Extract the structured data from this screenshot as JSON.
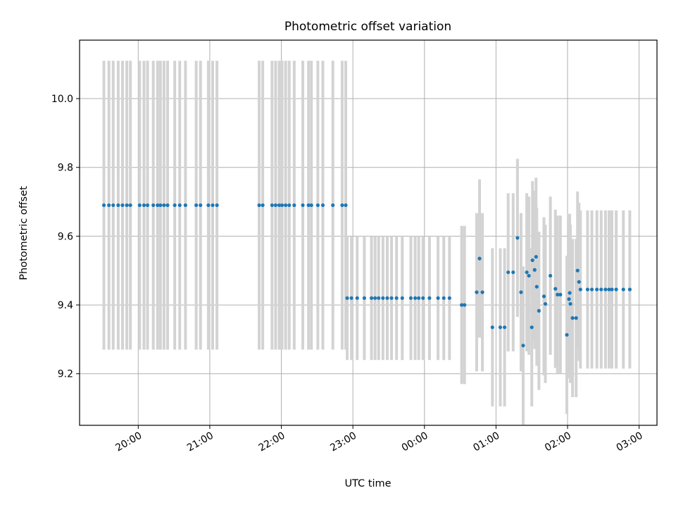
{
  "chart_data": {
    "type": "scatter",
    "title": "Photometric offset variation",
    "xlabel": "UTC time",
    "ylabel": "Photometric offset",
    "x_unit": "hours",
    "x_ticks": [
      {
        "value": 20,
        "label": "20:00"
      },
      {
        "value": 21,
        "label": "21:00"
      },
      {
        "value": 22,
        "label": "22:00"
      },
      {
        "value": 23,
        "label": "23:00"
      },
      {
        "value": 24,
        "label": "00:00"
      },
      {
        "value": 25,
        "label": "01:00"
      },
      {
        "value": 26,
        "label": "02:00"
      },
      {
        "value": 27,
        "label": "03:00"
      }
    ],
    "y_ticks": [
      {
        "value": 9.2,
        "label": "9.2"
      },
      {
        "value": 9.4,
        "label": "9.4"
      },
      {
        "value": 9.6,
        "label": "9.6"
      },
      {
        "value": 9.8,
        "label": "9.8"
      },
      {
        "value": 10.0,
        "label": "10.0"
      }
    ],
    "xlim": [
      19.18,
      27.25
    ],
    "ylim": [
      9.05,
      10.17
    ],
    "grid": true,
    "colors": {
      "points": "#1f77b4",
      "errorbars": "#d3d3d3",
      "grid": "#b0b0b0"
    },
    "series": [
      {
        "y_error": 0.42,
        "points": [
          [
            19.52,
            9.69
          ],
          [
            19.59,
            9.69
          ],
          [
            19.65,
            9.69
          ],
          [
            19.72,
            9.69
          ],
          [
            19.78,
            9.69
          ],
          [
            19.84,
            9.69
          ],
          [
            19.89,
            9.69
          ],
          [
            20.02,
            9.69
          ],
          [
            20.08,
            9.69
          ],
          [
            20.13,
            9.69
          ],
          [
            20.21,
            9.69
          ],
          [
            20.27,
            9.69
          ],
          [
            20.31,
            9.69
          ],
          [
            20.36,
            9.69
          ],
          [
            20.41,
            9.69
          ],
          [
            20.51,
            9.69
          ],
          [
            20.58,
            9.69
          ],
          [
            20.66,
            9.69
          ],
          [
            20.81,
            9.69
          ],
          [
            20.87,
            9.69
          ],
          [
            20.98,
            9.69
          ],
          [
            21.04,
            9.69
          ],
          [
            21.1,
            9.69
          ],
          [
            21.69,
            9.69
          ],
          [
            21.74,
            9.69
          ],
          [
            21.87,
            9.69
          ],
          [
            21.92,
            9.69
          ],
          [
            21.97,
            9.69
          ],
          [
            22.01,
            9.69
          ],
          [
            22.06,
            9.69
          ],
          [
            22.11,
            9.69
          ],
          [
            22.18,
            9.69
          ],
          [
            22.3,
            9.69
          ],
          [
            22.38,
            9.69
          ],
          [
            22.42,
            9.69
          ],
          [
            22.51,
            9.69
          ],
          [
            22.58,
            9.69
          ],
          [
            22.72,
            9.69
          ],
          [
            22.85,
            9.69
          ],
          [
            22.9,
            9.69
          ]
        ]
      },
      {
        "y_error": 0.18,
        "points": [
          [
            22.92,
            9.42
          ],
          [
            22.98,
            9.42
          ],
          [
            23.06,
            9.42
          ],
          [
            23.16,
            9.42
          ],
          [
            23.26,
            9.42
          ],
          [
            23.31,
            9.42
          ],
          [
            23.36,
            9.42
          ],
          [
            23.42,
            9.42
          ],
          [
            23.48,
            9.42
          ],
          [
            23.54,
            9.42
          ],
          [
            23.61,
            9.42
          ],
          [
            23.69,
            9.42
          ],
          [
            23.81,
            9.42
          ],
          [
            23.87,
            9.42
          ],
          [
            23.92,
            9.42
          ],
          [
            23.98,
            9.42
          ],
          [
            24.07,
            9.42
          ],
          [
            24.19,
            9.42
          ],
          [
            24.27,
            9.42
          ],
          [
            24.35,
            9.42
          ]
        ]
      },
      {
        "y_error": 0.23,
        "points": [
          [
            24.52,
            9.4
          ],
          [
            24.56,
            9.4
          ],
          [
            24.73,
            9.437
          ],
          [
            24.77,
            9.535
          ],
          [
            24.81,
            9.437
          ],
          [
            24.95,
            9.335
          ],
          [
            25.06,
            9.335
          ],
          [
            25.12,
            9.335
          ],
          [
            25.17,
            9.495
          ],
          [
            25.24,
            9.495
          ],
          [
            25.3,
            9.595
          ],
          [
            25.35,
            9.437
          ],
          [
            25.38,
            9.282
          ],
          [
            25.43,
            9.495
          ],
          [
            25.46,
            9.485
          ],
          [
            25.5,
            9.335
          ],
          [
            25.51,
            9.53
          ],
          [
            25.54,
            9.502
          ],
          [
            25.56,
            9.54
          ],
          [
            25.57,
            9.453
          ],
          [
            25.6,
            9.383
          ],
          [
            25.67,
            9.425
          ],
          [
            25.69,
            9.403
          ],
          [
            25.76,
            9.485
          ],
          [
            25.83,
            9.447
          ],
          [
            25.86,
            9.43
          ],
          [
            25.9,
            9.43
          ],
          [
            25.99,
            9.313
          ],
          [
            26.02,
            9.417
          ],
          [
            26.03,
            9.435
          ],
          [
            26.04,
            9.403
          ],
          [
            26.07,
            9.362
          ],
          [
            26.12,
            9.362
          ],
          [
            26.14,
            9.5
          ],
          [
            26.16,
            9.467
          ],
          [
            26.18,
            9.445
          ],
          [
            26.28,
            9.445
          ],
          [
            26.34,
            9.445
          ],
          [
            26.41,
            9.445
          ],
          [
            26.47,
            9.445
          ],
          [
            26.53,
            9.445
          ],
          [
            26.58,
            9.445
          ],
          [
            26.62,
            9.445
          ],
          [
            26.68,
            9.445
          ],
          [
            26.78,
            9.445
          ],
          [
            26.87,
            9.445
          ]
        ]
      }
    ]
  }
}
